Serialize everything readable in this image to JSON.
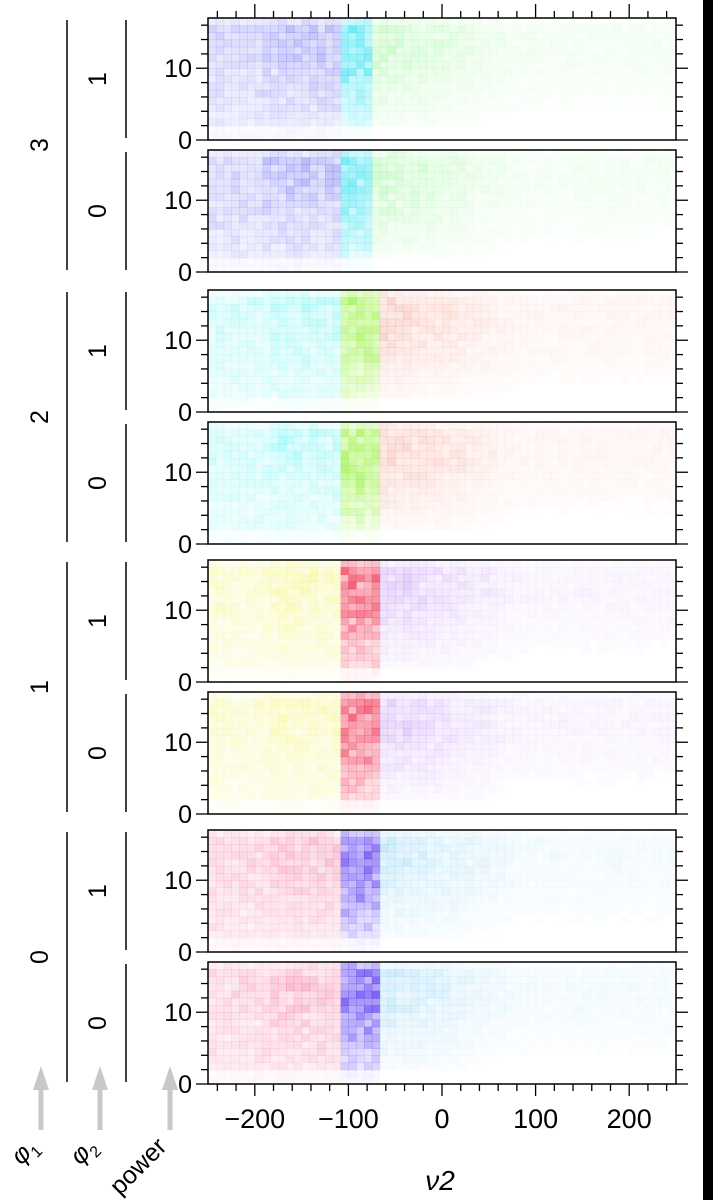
{
  "chart_data": {
    "type": "heatmap",
    "xlabel": "ν2",
    "xlim": [
      -250,
      250
    ],
    "x_ticks": [
      "−200",
      "−100",
      "0",
      "100",
      "200"
    ],
    "ylim": [
      0,
      17
    ],
    "y_ticks": [
      "0",
      "10"
    ],
    "group_labels": {
      "phi1_axis": "φ1",
      "phi2_axis": "φ2",
      "power_axis": "power"
    },
    "panels": [
      {
        "phi1": "3",
        "phi2": "1",
        "hue_left": 240,
        "hue_right": 120,
        "peak_hue": 185,
        "peak_x": -100,
        "strength": 0.55
      },
      {
        "phi1": "3",
        "phi2": "0",
        "hue_left": 240,
        "hue_right": 120,
        "peak_hue": 185,
        "peak_x": -100,
        "strength": 0.55
      },
      {
        "phi1": "2",
        "phi2": "1",
        "hue_left": 180,
        "hue_right": 10,
        "peak_hue": 90,
        "peak_x": -95,
        "strength": 0.6
      },
      {
        "phi1": "2",
        "phi2": "0",
        "hue_left": 180,
        "hue_right": 10,
        "peak_hue": 90,
        "peak_x": -95,
        "strength": 0.6
      },
      {
        "phi1": "1",
        "phi2": "1",
        "hue_left": 60,
        "hue_right": 270,
        "peak_hue": 350,
        "peak_x": -95,
        "strength": 0.7
      },
      {
        "phi1": "1",
        "phi2": "0",
        "hue_left": 60,
        "hue_right": 270,
        "peak_hue": 350,
        "peak_x": -95,
        "strength": 0.7
      },
      {
        "phi1": "0",
        "phi2": "1",
        "hue_left": 340,
        "hue_right": 200,
        "peak_hue": 250,
        "peak_x": -95,
        "strength": 0.65
      },
      {
        "phi1": "0",
        "phi2": "0",
        "hue_left": 340,
        "hue_right": 200,
        "peak_hue": 250,
        "peak_x": -95,
        "strength": 0.65
      }
    ],
    "phi1_groups": [
      "3",
      "2",
      "1",
      "0"
    ],
    "grid": false
  }
}
